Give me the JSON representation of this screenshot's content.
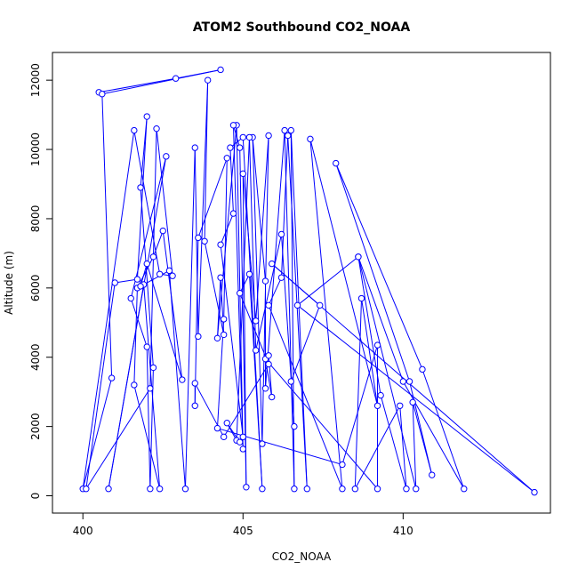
{
  "chart_data": {
    "type": "line",
    "title": "ATOM2 Southbound CO2_NOAA",
    "xlabel": "CO2_NOAA",
    "ylabel": "Altitude (m)",
    "xlim": [
      399.05,
      414.6
    ],
    "ylim": [
      -500,
      12800
    ],
    "xticks": [
      400,
      405,
      410
    ],
    "yticks": [
      0,
      2000,
      4000,
      6000,
      8000,
      10000,
      12000
    ],
    "grid": false,
    "markers": "open-circle",
    "line_color": "#0000ff",
    "series": [
      {
        "values": [
          [
            400.5,
            11650
          ],
          [
            402.9,
            12050
          ],
          [
            404.3,
            12300
          ],
          [
            400.6,
            11600
          ],
          [
            400.9,
            3400
          ],
          [
            400.0,
            200
          ],
          [
            401.6,
            10550
          ],
          [
            402.4,
            6400
          ],
          [
            402.8,
            6350
          ],
          [
            402.3,
            10600
          ],
          [
            402.1,
            3100
          ],
          [
            400.1,
            200
          ],
          [
            401.0,
            6150
          ],
          [
            401.7,
            6250
          ],
          [
            402.0,
            10950
          ],
          [
            401.8,
            8900
          ],
          [
            402.2,
            3700
          ],
          [
            402.1,
            200
          ],
          [
            402.0,
            4300
          ],
          [
            401.5,
            5700
          ],
          [
            402.6,
            9800
          ],
          [
            400.8,
            200
          ],
          [
            401.9,
            6100
          ],
          [
            402.4,
            200
          ],
          [
            401.6,
            3200
          ],
          [
            401.7,
            6000
          ],
          [
            402.2,
            6900
          ],
          [
            402.5,
            7650
          ],
          [
            403.1,
            3350
          ],
          [
            402.0,
            6700
          ],
          [
            401.8,
            6050
          ],
          [
            402.7,
            6500
          ],
          [
            403.2,
            200
          ],
          [
            403.5,
            10050
          ],
          [
            403.6,
            4600
          ],
          [
            403.9,
            12000
          ],
          [
            403.8,
            7350
          ],
          [
            404.4,
            4650
          ],
          [
            404.3,
            6300
          ],
          [
            404.2,
            4550
          ],
          [
            404.8,
            10700
          ],
          [
            405.0,
            1350
          ],
          [
            404.7,
            10700
          ],
          [
            404.9,
            10050
          ],
          [
            405.1,
            250
          ],
          [
            405.0,
            9300
          ],
          [
            405.4,
            5050
          ],
          [
            405.8,
            10400
          ],
          [
            405.6,
            1500
          ],
          [
            405.3,
            10350
          ],
          [
            405.7,
            6200
          ],
          [
            405.7,
            3100
          ],
          [
            406.3,
            10550
          ],
          [
            406.6,
            200
          ],
          [
            406.5,
            10550
          ],
          [
            407.0,
            200
          ],
          [
            406.4,
            10400
          ],
          [
            406.2,
            6300
          ],
          [
            405.8,
            5500
          ],
          [
            408.1,
            200
          ],
          [
            407.1,
            10300
          ],
          [
            409.2,
            2600
          ],
          [
            408.7,
            5700
          ],
          [
            408.5,
            200
          ],
          [
            409.9,
            2600
          ],
          [
            410.1,
            200
          ],
          [
            409.3,
            2900
          ],
          [
            408.6,
            6900
          ],
          [
            410.0,
            3300
          ],
          [
            411.9,
            200
          ],
          [
            410.6,
            3650
          ],
          [
            407.9,
            9600
          ],
          [
            410.2,
            3300
          ],
          [
            410.9,
            600
          ],
          [
            410.3,
            2700
          ],
          [
            410.4,
            200
          ],
          [
            408.6,
            6900
          ],
          [
            406.7,
            5500
          ],
          [
            414.1,
            100
          ],
          [
            405.9,
            6700
          ],
          [
            407.4,
            5500
          ],
          [
            406.5,
            3300
          ],
          [
            406.6,
            2000
          ],
          [
            406.2,
            7550
          ],
          [
            405.4,
            4200
          ],
          [
            405.2,
            10350
          ],
          [
            404.8,
            1600
          ],
          [
            404.5,
            2100
          ],
          [
            404.9,
            1550
          ],
          [
            405.0,
            1700
          ],
          [
            404.3,
            7250
          ],
          [
            404.7,
            8150
          ],
          [
            404.6,
            10050
          ],
          [
            405.0,
            10350
          ],
          [
            405.6,
            200
          ],
          [
            405.2,
            6400
          ],
          [
            404.9,
            5850
          ],
          [
            405.8,
            3800
          ],
          [
            404.4,
            1700
          ],
          [
            403.5,
            3250
          ],
          [
            403.5,
            2600
          ],
          [
            403.6,
            7450
          ],
          [
            404.5,
            9750
          ],
          [
            404.4,
            5100
          ],
          [
            404.2,
            1950
          ],
          [
            408.1,
            900
          ],
          [
            409.2,
            4350
          ],
          [
            409.2,
            200
          ],
          [
            405.7,
            3950
          ],
          [
            405.9,
            2850
          ],
          [
            405.8,
            4050
          ]
        ]
      }
    ]
  }
}
